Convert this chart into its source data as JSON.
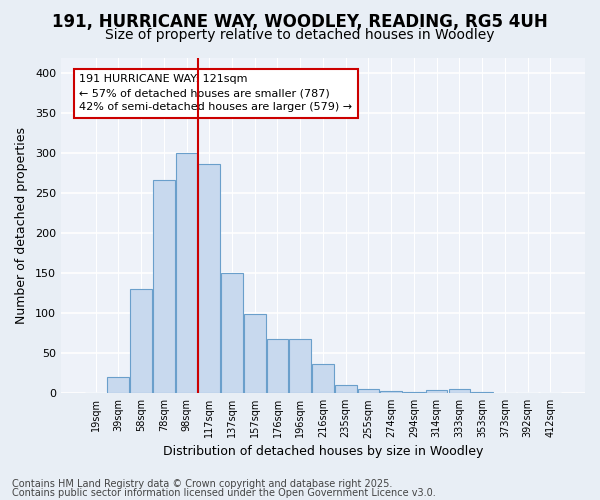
{
  "title_line1": "191, HURRICANE WAY, WOODLEY, READING, RG5 4UH",
  "title_line2": "Size of property relative to detached houses in Woodley",
  "xlabel": "Distribution of detached houses by size in Woodley",
  "ylabel": "Number of detached properties",
  "bar_labels": [
    "19sqm",
    "39sqm",
    "58sqm",
    "78sqm",
    "98sqm",
    "117sqm",
    "137sqm",
    "157sqm",
    "176sqm",
    "196sqm",
    "216sqm",
    "235sqm",
    "255sqm",
    "274sqm",
    "294sqm",
    "314sqm",
    "333sqm",
    "353sqm",
    "373sqm",
    "392sqm",
    "412sqm"
  ],
  "bar_values": [
    0,
    20,
    130,
    267,
    300,
    287,
    150,
    99,
    68,
    68,
    37,
    10,
    5,
    3,
    1,
    4,
    5,
    1,
    0,
    0,
    0
  ],
  "bar_color": "#c8d9ee",
  "bar_edge_color": "#6a9fcb",
  "vline_x": 4.5,
  "vline_color": "#cc0000",
  "annotation_title": "191 HURRICANE WAY: 121sqm",
  "annotation_line2": "← 57% of detached houses are smaller (787)",
  "annotation_line3": "42% of semi-detached houses are larger (579) →",
  "annotation_box_facecolor": "#ffffff",
  "annotation_box_edgecolor": "#cc0000",
  "ylim": [
    0,
    420
  ],
  "yticks": [
    0,
    50,
    100,
    150,
    200,
    250,
    300,
    350,
    400
  ],
  "footnote1": "Contains HM Land Registry data © Crown copyright and database right 2025.",
  "footnote2": "Contains public sector information licensed under the Open Government Licence v3.0.",
  "bg_color": "#e8eef5",
  "plot_bg_color": "#eef2f9",
  "grid_color": "#ffffff",
  "title_fontsize": 12,
  "subtitle_fontsize": 10,
  "axis_label_fontsize": 9,
  "tick_fontsize": 8,
  "footnote_fontsize": 7
}
